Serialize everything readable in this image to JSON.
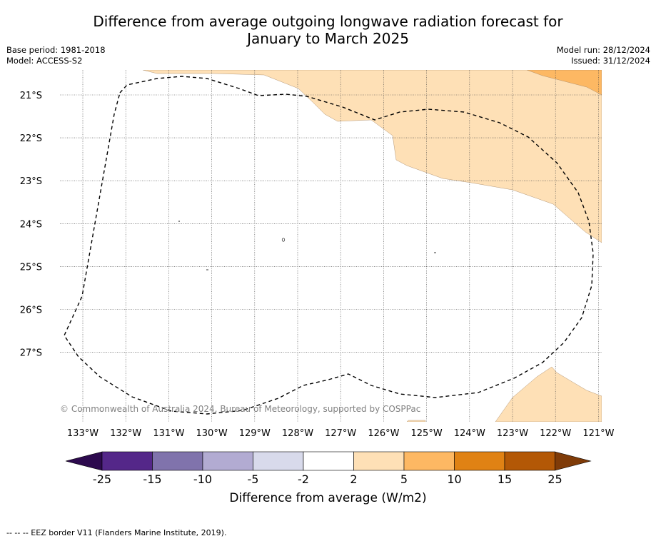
{
  "title_line1": "Difference from average outgoing longwave radiation forecast for",
  "title_line2": "January to March 2025",
  "base_period": "Base period: 1981-2018",
  "model": "Model: ACCESS-S2",
  "model_run": "Model run: 28/12/2024",
  "issued": "Issued: 31/12/2024",
  "copyright": "© Commonwealth of Australia 2024, Bureau of Meteorology, supported by COSPPac",
  "lon_labels": [
    "133°W",
    "132°W",
    "131°W",
    "130°W",
    "129°W",
    "128°W",
    "127°W",
    "126°W",
    "125°W",
    "124°W",
    "123°W",
    "122°W",
    "121°W"
  ],
  "lat_labels": [
    "21°S",
    "22°S",
    "23°S",
    "24°S",
    "25°S",
    "26°S",
    "27°S"
  ],
  "colorbar": {
    "ticks": [
      "-25",
      "-15",
      "-10",
      "-5",
      "-2",
      "2",
      "5",
      "10",
      "15",
      "25"
    ],
    "colors": [
      "#2d0a4e",
      "#542789",
      "#8073ac",
      "#b2abd2",
      "#d8daeb",
      "#ffffff",
      "#fee0b6",
      "#fdb863",
      "#e08214",
      "#b35806",
      "#7f3b08"
    ],
    "label": "Difference from average (W/m2)"
  },
  "legend": "--  --  -- EEZ border V11 (Flanders Marine Institute, 2019)."
}
